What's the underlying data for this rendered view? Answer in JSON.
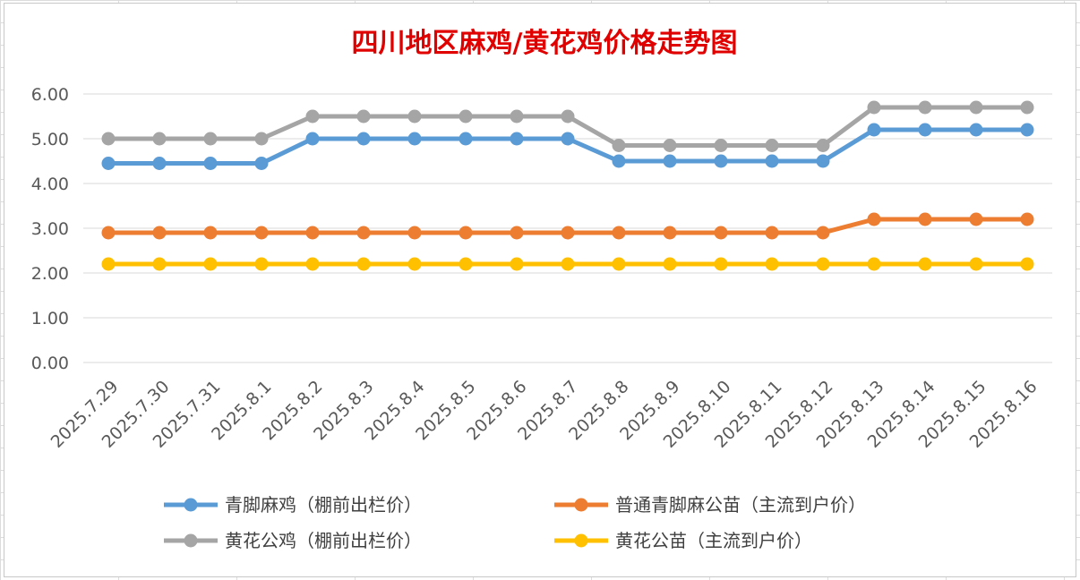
{
  "chart_data": {
    "type": "line",
    "title": "四川地区麻鸡/黄花鸡价格走势图",
    "xlabel": "",
    "ylabel": "",
    "categories": [
      "2025.7.29",
      "2025.7.30",
      "2025.7.31",
      "2025.8.1",
      "2025.8.2",
      "2025.8.3",
      "2025.8.4",
      "2025.8.5",
      "2025.8.6",
      "2025.8.7",
      "2025.8.8",
      "2025.8.9",
      "2025.8.10",
      "2025.8.11",
      "2025.8.12",
      "2025.8.13",
      "2025.8.14",
      "2025.8.15",
      "2025.8.16"
    ],
    "ylim": [
      0,
      6
    ],
    "yticks": [
      "0.00",
      "1.00",
      "2.00",
      "3.00",
      "4.00",
      "5.00",
      "6.00"
    ],
    "grid": "horizontal",
    "legend_position": "bottom",
    "series": [
      {
        "name": "青脚麻鸡（棚前出栏价）",
        "color": "#5b9bd5",
        "values": [
          4.45,
          4.45,
          4.45,
          4.45,
          5.0,
          5.0,
          5.0,
          5.0,
          5.0,
          5.0,
          4.5,
          4.5,
          4.5,
          4.5,
          4.5,
          5.2,
          5.2,
          5.2,
          5.2
        ]
      },
      {
        "name": "普通青脚麻公苗（主流到户价）",
        "color": "#ed7d31",
        "values": [
          2.9,
          2.9,
          2.9,
          2.9,
          2.9,
          2.9,
          2.9,
          2.9,
          2.9,
          2.9,
          2.9,
          2.9,
          2.9,
          2.9,
          2.9,
          3.2,
          3.2,
          3.2,
          3.2
        ]
      },
      {
        "name": "黄花公鸡（棚前出栏价）",
        "color": "#a5a5a5",
        "values": [
          5.0,
          5.0,
          5.0,
          5.0,
          5.5,
          5.5,
          5.5,
          5.5,
          5.5,
          5.5,
          4.85,
          4.85,
          4.85,
          4.85,
          4.85,
          5.7,
          5.7,
          5.7,
          5.7
        ]
      },
      {
        "name": "黄花公苗（主流到户价）",
        "color": "#ffc000",
        "values": [
          2.2,
          2.2,
          2.2,
          2.2,
          2.2,
          2.2,
          2.2,
          2.2,
          2.2,
          2.2,
          2.2,
          2.2,
          2.2,
          2.2,
          2.2,
          2.2,
          2.2,
          2.2,
          2.2
        ]
      }
    ]
  }
}
